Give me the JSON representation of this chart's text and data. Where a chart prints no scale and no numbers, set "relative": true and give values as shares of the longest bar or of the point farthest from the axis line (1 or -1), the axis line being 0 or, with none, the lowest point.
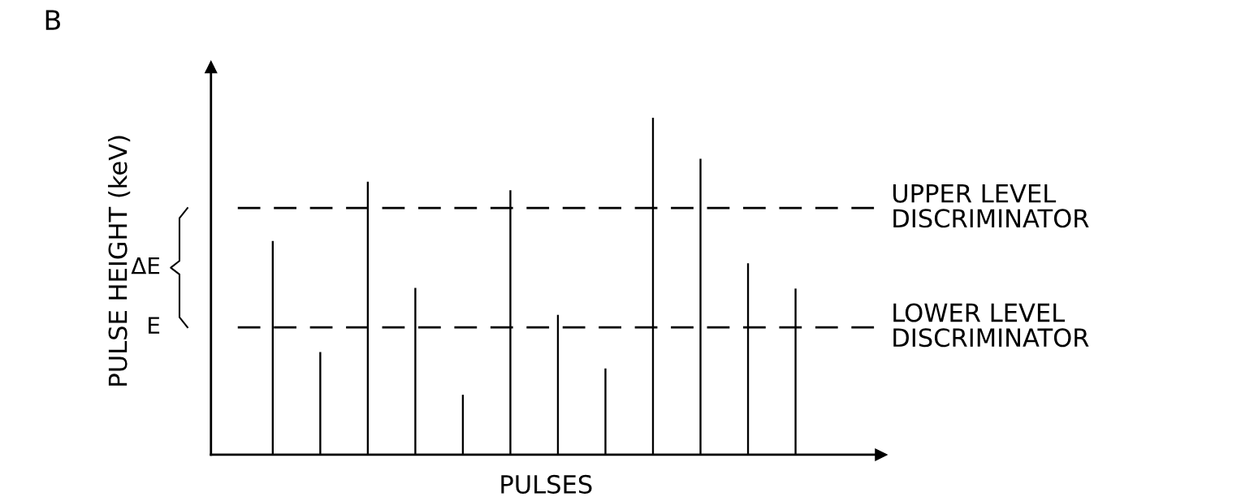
{
  "chart_data": {
    "type": "bar",
    "title": "B",
    "xlabel": "PULSES",
    "ylabel": "PULSE HEIGHT (keV)",
    "relative": true,
    "categories": [
      null,
      null,
      null,
      null,
      null,
      null,
      null,
      null,
      null,
      null,
      null,
      null
    ],
    "values": [
      0.634,
      0.305,
      0.81,
      0.495,
      0.178,
      0.785,
      0.415,
      0.256,
      1,
      0.878,
      0.568,
      0.493
    ],
    "color": "#000000",
    "ref_lines": [
      {
        "axis": "y",
        "value": 0.732,
        "label": "UPPER LEVEL\nDISCRIMINATOR",
        "color": "#000000",
        "line_style": "dashed"
      },
      {
        "axis": "y",
        "value": 0.378,
        "label": "LOWER LEVEL\nDISCRIMINATOR",
        "color": "#000000",
        "line_style": "dashed"
      }
    ],
    "annotations": [
      "ΔE",
      "E"
    ],
    "grid": false
  }
}
